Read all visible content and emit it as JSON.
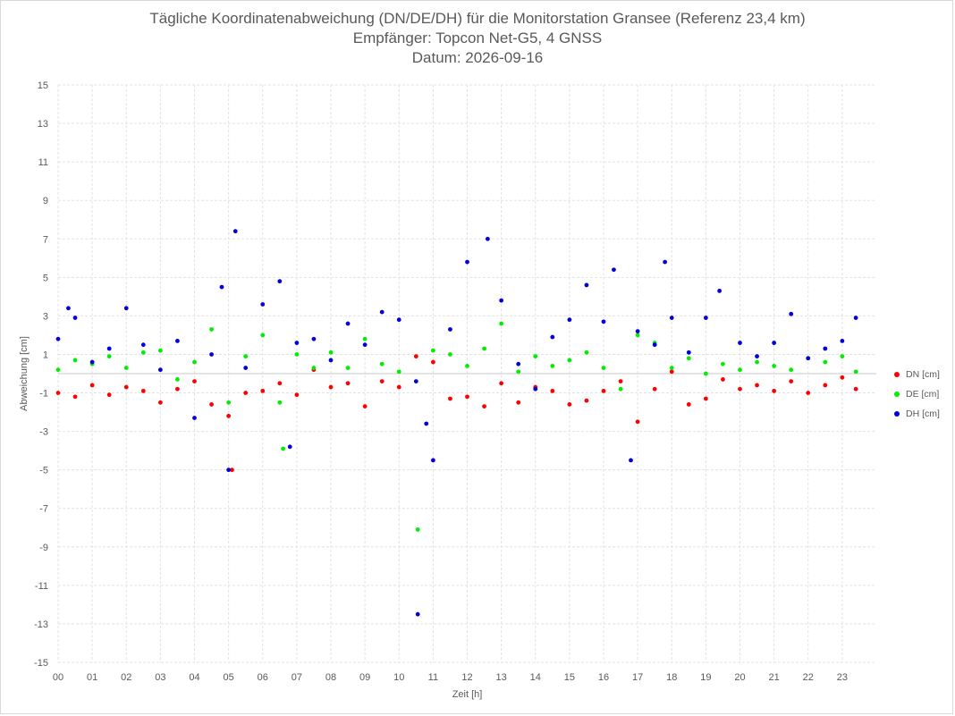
{
  "title": {
    "line1": "Tägliche Koordinatenabweichung (DN/DE/DH) für die Monitorstation Gransee (Referenz 23,4 km)",
    "line2": "Empfänger: Topcon Net-G5, 4 GNSS",
    "line3": "Datum: 2026-09-16"
  },
  "chart_data": {
    "type": "scatter",
    "xlabel": "Zeit [h]",
    "ylabel": "Abweichung [cm]",
    "xlim": [
      0,
      24
    ],
    "ylim": [
      -15,
      15
    ],
    "x_ticks": [
      "00",
      "01",
      "02",
      "03",
      "04",
      "05",
      "06",
      "07",
      "08",
      "09",
      "10",
      "11",
      "12",
      "13",
      "14",
      "15",
      "16",
      "17",
      "18",
      "19",
      "20",
      "21",
      "22",
      "23"
    ],
    "y_ticks": [
      15,
      13,
      11,
      9,
      7,
      5,
      3,
      1,
      -1,
      -3,
      -5,
      -7,
      -9,
      -11,
      -13,
      -15
    ],
    "grid": true,
    "legend_position": "right",
    "series": [
      {
        "name": "DN [cm]",
        "color": "#ff0000",
        "x": [
          0.0,
          0.5,
          1.0,
          1.5,
          2.0,
          2.5,
          3.0,
          3.5,
          4.0,
          4.5,
          5.0,
          5.1,
          5.5,
          6.0,
          6.5,
          7.0,
          7.5,
          8.0,
          8.5,
          9.0,
          9.5,
          10.0,
          10.5,
          11.0,
          11.5,
          12.0,
          12.5,
          13.0,
          13.5,
          14.0,
          14.5,
          15.0,
          15.5,
          16.0,
          16.5,
          17.0,
          17.5,
          18.0,
          18.5,
          19.0,
          19.5,
          20.0,
          20.5,
          21.0,
          21.5,
          22.0,
          22.5,
          23.0,
          23.4
        ],
        "values": [
          -1.0,
          -1.2,
          -0.6,
          -1.1,
          -0.7,
          -0.9,
          -1.5,
          -0.8,
          -0.4,
          -1.6,
          -2.2,
          -5.0,
          -1.0,
          -0.9,
          -0.5,
          -1.1,
          0.2,
          -0.7,
          -0.5,
          -1.7,
          -0.4,
          -0.7,
          0.9,
          0.6,
          -1.3,
          -1.2,
          -1.7,
          -0.5,
          -1.5,
          -0.7,
          -0.9,
          -1.6,
          -1.4,
          -0.9,
          -0.4,
          -2.5,
          -0.8,
          0.1,
          -1.6,
          -1.3,
          -0.3,
          -0.8,
          -0.6,
          -0.9,
          -0.4,
          -1.0,
          -0.6,
          -0.2,
          -0.8
        ]
      },
      {
        "name": "DE [cm]",
        "color": "#00ee00",
        "x": [
          0.0,
          0.5,
          1.0,
          1.5,
          2.0,
          2.5,
          3.0,
          3.5,
          4.0,
          4.5,
          5.0,
          5.5,
          6.0,
          6.5,
          6.6,
          7.0,
          7.5,
          8.0,
          8.5,
          9.0,
          9.5,
          10.0,
          10.55,
          11.0,
          11.5,
          12.0,
          12.5,
          13.0,
          13.5,
          14.0,
          14.5,
          15.0,
          15.5,
          16.0,
          16.5,
          17.0,
          17.5,
          18.0,
          18.5,
          19.0,
          19.5,
          20.0,
          20.5,
          21.0,
          21.5,
          22.0,
          22.5,
          23.0,
          23.4
        ],
        "values": [
          0.2,
          0.7,
          0.5,
          0.9,
          0.3,
          1.1,
          1.2,
          -0.3,
          0.6,
          2.3,
          -1.5,
          0.9,
          2.0,
          -1.5,
          -3.9,
          1.0,
          0.3,
          1.1,
          0.3,
          1.8,
          0.5,
          0.1,
          -8.1,
          1.2,
          1.0,
          0.4,
          1.3,
          2.6,
          0.1,
          0.9,
          0.4,
          0.7,
          1.1,
          0.3,
          -0.8,
          2.0,
          1.6,
          0.3,
          0.8,
          0.0,
          0.5,
          0.2,
          0.6,
          0.4,
          0.2,
          0.8,
          0.6,
          0.9,
          0.1
        ]
      },
      {
        "name": "DH [cm]",
        "color": "#0000dd",
        "x": [
          0.0,
          0.3,
          0.5,
          1.0,
          1.5,
          2.0,
          2.5,
          3.0,
          3.5,
          4.0,
          4.5,
          4.8,
          5.0,
          5.2,
          5.5,
          6.0,
          6.5,
          6.8,
          7.0,
          7.5,
          8.0,
          8.5,
          9.0,
          9.5,
          10.0,
          10.5,
          10.55,
          10.8,
          11.0,
          11.5,
          12.0,
          12.6,
          13.0,
          13.5,
          14.0,
          14.5,
          15.0,
          15.5,
          16.0,
          16.3,
          16.8,
          17.0,
          17.5,
          17.8,
          18.0,
          18.5,
          19.0,
          19.4,
          20.0,
          20.5,
          21.0,
          21.5,
          22.0,
          22.5,
          23.0,
          23.4
        ],
        "values": [
          1.8,
          3.4,
          2.9,
          0.6,
          1.3,
          3.4,
          1.5,
          0.2,
          1.7,
          -2.3,
          1.0,
          4.5,
          -5.0,
          7.4,
          0.3,
          3.6,
          4.8,
          -3.8,
          1.6,
          1.8,
          0.7,
          2.6,
          1.5,
          3.2,
          2.8,
          -0.4,
          -12.5,
          -2.6,
          -4.5,
          2.3,
          5.8,
          7.0,
          3.8,
          0.5,
          -0.8,
          1.9,
          2.8,
          4.6,
          2.7,
          5.4,
          -4.5,
          2.2,
          1.5,
          5.8,
          2.9,
          1.1,
          2.9,
          4.3,
          1.6,
          0.9,
          1.6,
          3.1,
          0.8,
          1.3,
          1.7,
          2.9
        ]
      }
    ]
  }
}
